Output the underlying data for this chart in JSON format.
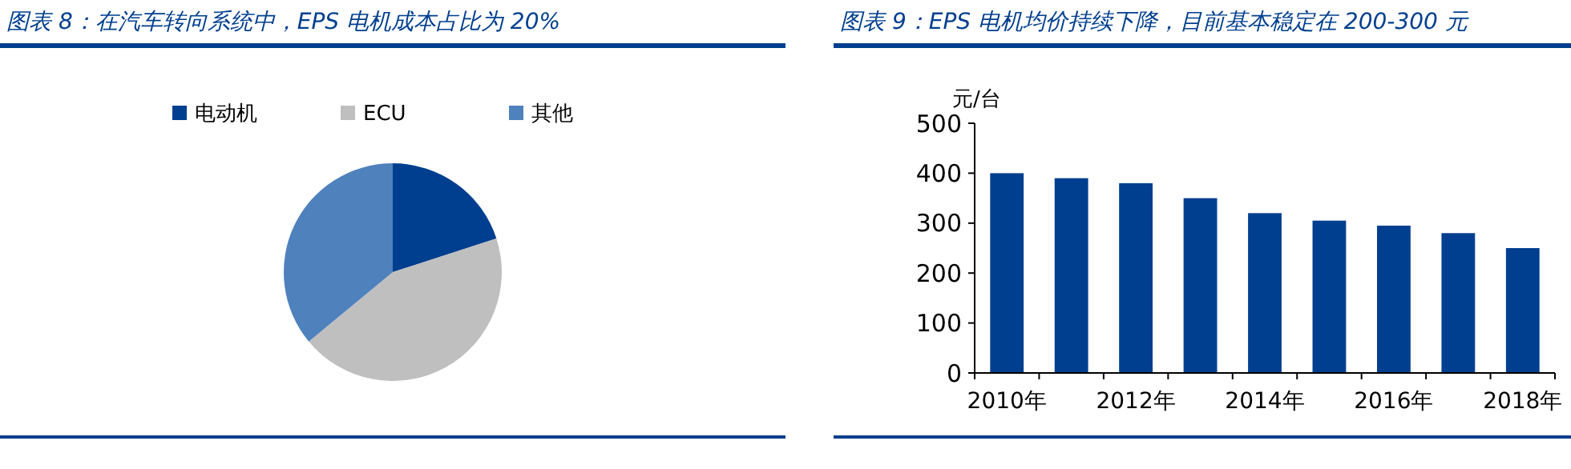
{
  "chart_data": [
    {
      "type": "pie",
      "title": "图表 8：在汽车转向系统中，EPS 电机成本占比为 20%",
      "categories": [
        "电动机",
        "ECU",
        "其他"
      ],
      "values": [
        20,
        44,
        36
      ],
      "colors": [
        "#003f8f",
        "#bfbfbf",
        "#4f81bd"
      ],
      "legend": "top"
    },
    {
      "type": "bar",
      "title": "图表 9：EPS 电机均价持续下降，目前基本稳定在 200-300 元",
      "ylabel": "元/台",
      "categories": [
        "2010年",
        null,
        "2012年",
        null,
        "2014年",
        null,
        "2016年",
        null,
        "2018年"
      ],
      "values": [
        400,
        390,
        380,
        350,
        320,
        305,
        295,
        280,
        250
      ],
      "color": "#003f8f",
      "ylim": [
        0,
        500
      ],
      "yticks": [
        0,
        100,
        200,
        300,
        400,
        500
      ],
      "grid": false
    }
  ]
}
